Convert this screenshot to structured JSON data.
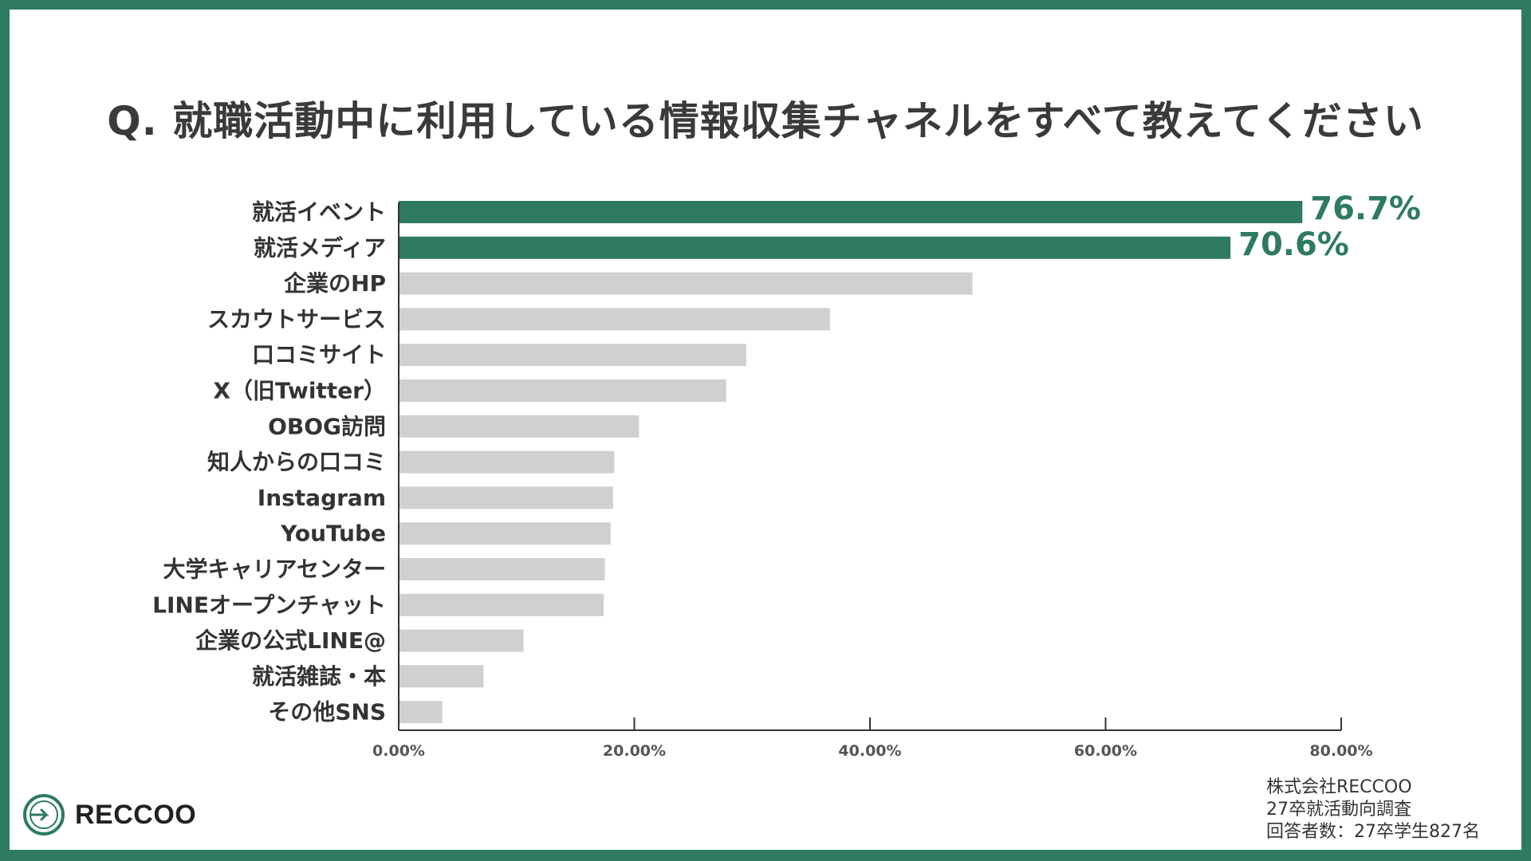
{
  "title": "Q. 就職活動中に利用している情報収集チャネルをすべて教えてください",
  "colors": {
    "frame": "#2e7a62",
    "highlight": "#2e7a62",
    "bar": "#d0d0d0",
    "text": "#333333"
  },
  "logo": {
    "icon": "reccoo-logo-icon",
    "name": "RECCOO"
  },
  "source": [
    "株式会社RECCOO",
    "27卒就活動向調査",
    "回答者数：27卒学生827名"
  ],
  "chart_data": {
    "type": "bar",
    "orientation": "horizontal",
    "categories": [
      "就活イベント",
      "就活メディア",
      "企業のHP",
      "スカウトサービス",
      "口コミサイト",
      "X（旧Twitter）",
      "OBOG訪問",
      "知人からの口コミ",
      "Instagram",
      "YouTube",
      "大学キャリアセンター",
      "LINEオープンチャット",
      "企業の公式LINE@",
      "就活雑誌・本",
      "その他SNS"
    ],
    "values": [
      76.7,
      70.6,
      48.7,
      36.6,
      29.5,
      27.8,
      20.4,
      18.3,
      18.2,
      18.0,
      17.5,
      17.4,
      10.6,
      7.2,
      3.7
    ],
    "highlight": [
      true,
      true,
      false,
      false,
      false,
      false,
      false,
      false,
      false,
      false,
      false,
      false,
      false,
      false,
      false
    ],
    "data_labels": [
      "76.7%",
      "70.6%",
      "",
      "",
      "",
      "",
      "",
      "",
      "",
      "",
      "",
      "",
      "",
      "",
      ""
    ],
    "xlim": [
      0,
      80
    ],
    "xticks": [
      0,
      20,
      40,
      60,
      80
    ],
    "xtick_labels": [
      "0.00%",
      "20.00%",
      "40.00%",
      "60.00%",
      "80.00%"
    ],
    "grid": false,
    "xlabel": "",
    "ylabel": ""
  }
}
